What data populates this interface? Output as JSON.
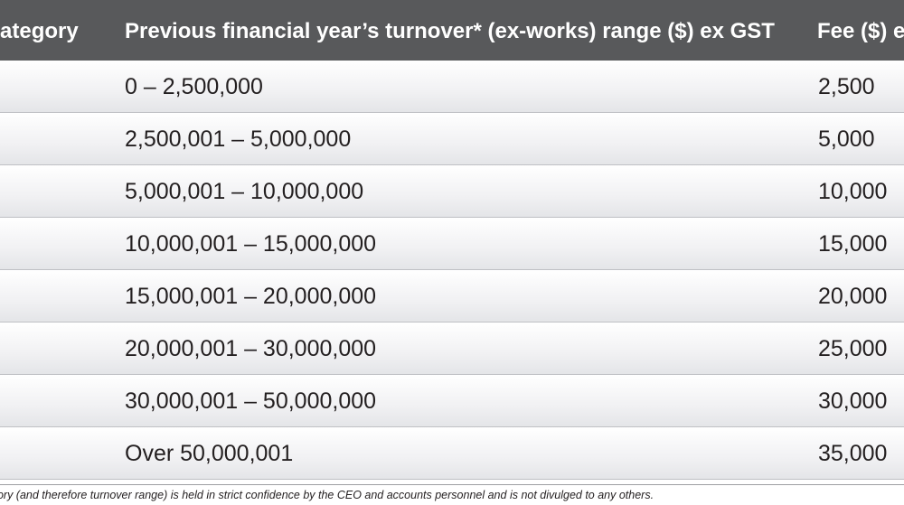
{
  "header": {
    "category": "ategory",
    "range": "Previous financial year’s turnover* (ex-works) range ($) ex GST",
    "fee": "Fee ($) e"
  },
  "rows": [
    {
      "range": "0 – 2,500,000",
      "fee": "2,500"
    },
    {
      "range": "2,500,001 – 5,000,000",
      "fee": "5,000"
    },
    {
      "range": "5,000,001 – 10,000,000",
      "fee": "10,000"
    },
    {
      "range": "10,000,001 – 15,000,000",
      "fee": "15,000"
    },
    {
      "range": "15,000,001 – 20,000,000",
      "fee": "20,000"
    },
    {
      "range": "20,000,001 – 30,000,000",
      "fee": "25,000"
    },
    {
      "range": "30,000,001 – 50,000,000",
      "fee": "30,000"
    },
    {
      "range": "Over 50,000,001",
      "fee": "35,000"
    }
  ],
  "footnote": "gory (and therefore turnover range) is held in strict confidence by the CEO and accounts personnel and is not divulged to any others."
}
